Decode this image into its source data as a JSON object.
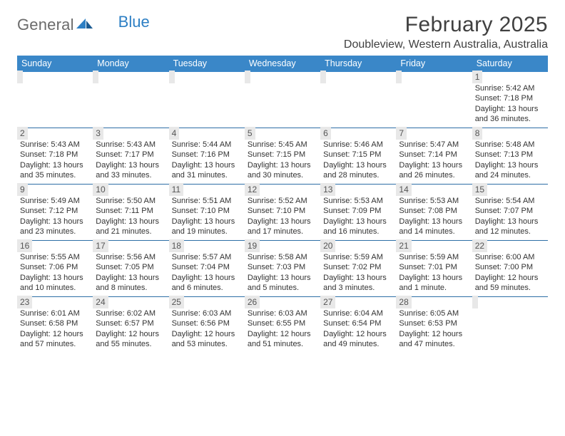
{
  "logo": {
    "text1": "General",
    "text2": "Blue"
  },
  "title": "February 2025",
  "subtitle": "Doubleview, Western Australia, Australia",
  "colors": {
    "header_bg": "#3a87c8",
    "header_text": "#ffffff",
    "daynum_bg": "#e8e8e8",
    "row_divider": "#2d6ea6",
    "text": "#333333",
    "logo_gray": "#6b6b6b",
    "logo_blue": "#2d7fc4"
  },
  "weekdays": [
    "Sunday",
    "Monday",
    "Tuesday",
    "Wednesday",
    "Thursday",
    "Friday",
    "Saturday"
  ],
  "weeks": [
    [
      {
        "n": "",
        "sunrise": "",
        "sunset": "",
        "day1": "",
        "day2": ""
      },
      {
        "n": "",
        "sunrise": "",
        "sunset": "",
        "day1": "",
        "day2": ""
      },
      {
        "n": "",
        "sunrise": "",
        "sunset": "",
        "day1": "",
        "day2": ""
      },
      {
        "n": "",
        "sunrise": "",
        "sunset": "",
        "day1": "",
        "day2": ""
      },
      {
        "n": "",
        "sunrise": "",
        "sunset": "",
        "day1": "",
        "day2": ""
      },
      {
        "n": "",
        "sunrise": "",
        "sunset": "",
        "day1": "",
        "day2": ""
      },
      {
        "n": "1",
        "sunrise": "Sunrise: 5:42 AM",
        "sunset": "Sunset: 7:18 PM",
        "day1": "Daylight: 13 hours",
        "day2": "and 36 minutes."
      }
    ],
    [
      {
        "n": "2",
        "sunrise": "Sunrise: 5:43 AM",
        "sunset": "Sunset: 7:18 PM",
        "day1": "Daylight: 13 hours",
        "day2": "and 35 minutes."
      },
      {
        "n": "3",
        "sunrise": "Sunrise: 5:43 AM",
        "sunset": "Sunset: 7:17 PM",
        "day1": "Daylight: 13 hours",
        "day2": "and 33 minutes."
      },
      {
        "n": "4",
        "sunrise": "Sunrise: 5:44 AM",
        "sunset": "Sunset: 7:16 PM",
        "day1": "Daylight: 13 hours",
        "day2": "and 31 minutes."
      },
      {
        "n": "5",
        "sunrise": "Sunrise: 5:45 AM",
        "sunset": "Sunset: 7:15 PM",
        "day1": "Daylight: 13 hours",
        "day2": "and 30 minutes."
      },
      {
        "n": "6",
        "sunrise": "Sunrise: 5:46 AM",
        "sunset": "Sunset: 7:15 PM",
        "day1": "Daylight: 13 hours",
        "day2": "and 28 minutes."
      },
      {
        "n": "7",
        "sunrise": "Sunrise: 5:47 AM",
        "sunset": "Sunset: 7:14 PM",
        "day1": "Daylight: 13 hours",
        "day2": "and 26 minutes."
      },
      {
        "n": "8",
        "sunrise": "Sunrise: 5:48 AM",
        "sunset": "Sunset: 7:13 PM",
        "day1": "Daylight: 13 hours",
        "day2": "and 24 minutes."
      }
    ],
    [
      {
        "n": "9",
        "sunrise": "Sunrise: 5:49 AM",
        "sunset": "Sunset: 7:12 PM",
        "day1": "Daylight: 13 hours",
        "day2": "and 23 minutes."
      },
      {
        "n": "10",
        "sunrise": "Sunrise: 5:50 AM",
        "sunset": "Sunset: 7:11 PM",
        "day1": "Daylight: 13 hours",
        "day2": "and 21 minutes."
      },
      {
        "n": "11",
        "sunrise": "Sunrise: 5:51 AM",
        "sunset": "Sunset: 7:10 PM",
        "day1": "Daylight: 13 hours",
        "day2": "and 19 minutes."
      },
      {
        "n": "12",
        "sunrise": "Sunrise: 5:52 AM",
        "sunset": "Sunset: 7:10 PM",
        "day1": "Daylight: 13 hours",
        "day2": "and 17 minutes."
      },
      {
        "n": "13",
        "sunrise": "Sunrise: 5:53 AM",
        "sunset": "Sunset: 7:09 PM",
        "day1": "Daylight: 13 hours",
        "day2": "and 16 minutes."
      },
      {
        "n": "14",
        "sunrise": "Sunrise: 5:53 AM",
        "sunset": "Sunset: 7:08 PM",
        "day1": "Daylight: 13 hours",
        "day2": "and 14 minutes."
      },
      {
        "n": "15",
        "sunrise": "Sunrise: 5:54 AM",
        "sunset": "Sunset: 7:07 PM",
        "day1": "Daylight: 13 hours",
        "day2": "and 12 minutes."
      }
    ],
    [
      {
        "n": "16",
        "sunrise": "Sunrise: 5:55 AM",
        "sunset": "Sunset: 7:06 PM",
        "day1": "Daylight: 13 hours",
        "day2": "and 10 minutes."
      },
      {
        "n": "17",
        "sunrise": "Sunrise: 5:56 AM",
        "sunset": "Sunset: 7:05 PM",
        "day1": "Daylight: 13 hours",
        "day2": "and 8 minutes."
      },
      {
        "n": "18",
        "sunrise": "Sunrise: 5:57 AM",
        "sunset": "Sunset: 7:04 PM",
        "day1": "Daylight: 13 hours",
        "day2": "and 6 minutes."
      },
      {
        "n": "19",
        "sunrise": "Sunrise: 5:58 AM",
        "sunset": "Sunset: 7:03 PM",
        "day1": "Daylight: 13 hours",
        "day2": "and 5 minutes."
      },
      {
        "n": "20",
        "sunrise": "Sunrise: 5:59 AM",
        "sunset": "Sunset: 7:02 PM",
        "day1": "Daylight: 13 hours",
        "day2": "and 3 minutes."
      },
      {
        "n": "21",
        "sunrise": "Sunrise: 5:59 AM",
        "sunset": "Sunset: 7:01 PM",
        "day1": "Daylight: 13 hours",
        "day2": "and 1 minute."
      },
      {
        "n": "22",
        "sunrise": "Sunrise: 6:00 AM",
        "sunset": "Sunset: 7:00 PM",
        "day1": "Daylight: 12 hours",
        "day2": "and 59 minutes."
      }
    ],
    [
      {
        "n": "23",
        "sunrise": "Sunrise: 6:01 AM",
        "sunset": "Sunset: 6:58 PM",
        "day1": "Daylight: 12 hours",
        "day2": "and 57 minutes."
      },
      {
        "n": "24",
        "sunrise": "Sunrise: 6:02 AM",
        "sunset": "Sunset: 6:57 PM",
        "day1": "Daylight: 12 hours",
        "day2": "and 55 minutes."
      },
      {
        "n": "25",
        "sunrise": "Sunrise: 6:03 AM",
        "sunset": "Sunset: 6:56 PM",
        "day1": "Daylight: 12 hours",
        "day2": "and 53 minutes."
      },
      {
        "n": "26",
        "sunrise": "Sunrise: 6:03 AM",
        "sunset": "Sunset: 6:55 PM",
        "day1": "Daylight: 12 hours",
        "day2": "and 51 minutes."
      },
      {
        "n": "27",
        "sunrise": "Sunrise: 6:04 AM",
        "sunset": "Sunset: 6:54 PM",
        "day1": "Daylight: 12 hours",
        "day2": "and 49 minutes."
      },
      {
        "n": "28",
        "sunrise": "Sunrise: 6:05 AM",
        "sunset": "Sunset: 6:53 PM",
        "day1": "Daylight: 12 hours",
        "day2": "and 47 minutes."
      },
      {
        "n": "",
        "sunrise": "",
        "sunset": "",
        "day1": "",
        "day2": ""
      }
    ]
  ]
}
